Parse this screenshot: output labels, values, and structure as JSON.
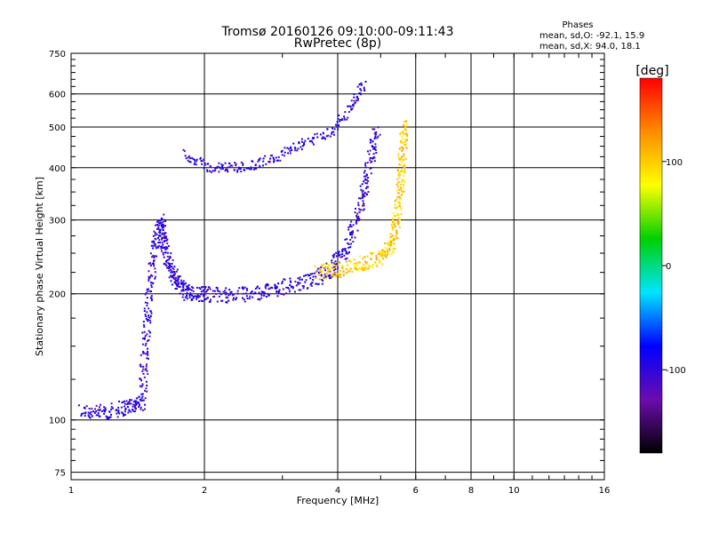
{
  "chart_data": {
    "type": "scatter",
    "title": "Tromsø 20160126 09:10:00-09:11:43",
    "subtitle": "RwPretec (8p)",
    "stats": {
      "heading": "Phases",
      "line1": "mean, sd,O: -92.1, 15.9",
      "line2": "mean, sd,X:  94.0, 18.1"
    },
    "xlabel": "Frequency [MHz]",
    "ylabel": "Stationary phase Virtual Height [km]",
    "xscale": "log2",
    "yscale": "log",
    "xlim": [
      1,
      16
    ],
    "ylim": [
      72,
      750
    ],
    "x_ticks": [
      1,
      2,
      4,
      6,
      8,
      10,
      16
    ],
    "x_tick_labels": [
      "1",
      "2",
      "4",
      "6",
      "8",
      "10",
      "16"
    ],
    "y_ticks": [
      75,
      100,
      200,
      300,
      400,
      500,
      600,
      750
    ],
    "y_tick_labels": [
      "75",
      "100",
      "200",
      "300",
      "400",
      "500",
      "600",
      "750"
    ],
    "grid": true,
    "colorbar": {
      "label": "[deg]",
      "range": [
        -180,
        180
      ],
      "ticks": [
        100,
        0,
        -100
      ],
      "tick_labels": [
        "100",
        "0",
        "-100"
      ],
      "colors": [
        "#000000",
        "#6a0dad",
        "#0000ff",
        "#00e5ff",
        "#00d000",
        "#ffff00",
        "#ff8c00",
        "#ff0000"
      ]
    },
    "color_encoding": "phase in deg",
    "series": [
      {
        "mode": "O",
        "trace": [
          {
            "x": 1.05,
            "y": 105,
            "phase": -100
          },
          {
            "x": 1.2,
            "y": 104,
            "phase": -100
          },
          {
            "x": 1.35,
            "y": 108,
            "phase": -100
          },
          {
            "x": 1.45,
            "y": 110,
            "phase": -100
          },
          {
            "x": 1.47,
            "y": 150,
            "phase": -100
          },
          {
            "x": 1.5,
            "y": 200,
            "phase": -100
          },
          {
            "x": 1.55,
            "y": 260,
            "phase": -100
          },
          {
            "x": 1.6,
            "y": 300,
            "phase": -100
          },
          {
            "x": 1.62,
            "y": 260,
            "phase": -100
          },
          {
            "x": 1.68,
            "y": 230,
            "phase": -100
          },
          {
            "x": 1.75,
            "y": 210,
            "phase": -100
          },
          {
            "x": 1.85,
            "y": 200,
            "phase": -100
          },
          {
            "x": 2.0,
            "y": 200,
            "phase": -100
          },
          {
            "x": 2.3,
            "y": 198,
            "phase": -100
          },
          {
            "x": 2.7,
            "y": 202,
            "phase": -100
          },
          {
            "x": 3.0,
            "y": 207,
            "phase": -100
          },
          {
            "x": 3.5,
            "y": 215,
            "phase": -100
          },
          {
            "x": 3.9,
            "y": 230,
            "phase": -100
          },
          {
            "x": 4.2,
            "y": 260,
            "phase": -100
          },
          {
            "x": 4.5,
            "y": 320,
            "phase": -100
          },
          {
            "x": 4.7,
            "y": 400,
            "phase": -100
          },
          {
            "x": 4.9,
            "y": 500,
            "phase": -100
          }
        ],
        "upper_branch": [
          {
            "x": 1.8,
            "y": 430,
            "phase": -100
          },
          {
            "x": 2.05,
            "y": 400,
            "phase": -100
          },
          {
            "x": 2.3,
            "y": 400,
            "phase": -100
          },
          {
            "x": 2.6,
            "y": 405,
            "phase": -100
          },
          {
            "x": 3.0,
            "y": 430,
            "phase": -100
          },
          {
            "x": 3.4,
            "y": 460,
            "phase": -100
          },
          {
            "x": 3.9,
            "y": 490,
            "phase": -100
          },
          {
            "x": 4.3,
            "y": 560,
            "phase": -100
          },
          {
            "x": 4.6,
            "y": 640,
            "phase": -100
          }
        ]
      },
      {
        "mode": "X",
        "trace": [
          {
            "x": 3.6,
            "y": 225,
            "phase": 100
          },
          {
            "x": 4.0,
            "y": 228,
            "phase": 100
          },
          {
            "x": 4.5,
            "y": 235,
            "phase": 100
          },
          {
            "x": 5.0,
            "y": 245,
            "phase": 100
          },
          {
            "x": 5.3,
            "y": 265,
            "phase": 100
          },
          {
            "x": 5.45,
            "y": 300,
            "phase": 100
          },
          {
            "x": 5.55,
            "y": 360,
            "phase": 100
          },
          {
            "x": 5.6,
            "y": 430,
            "phase": 100
          },
          {
            "x": 5.65,
            "y": 520,
            "phase": 100
          }
        ]
      }
    ]
  }
}
